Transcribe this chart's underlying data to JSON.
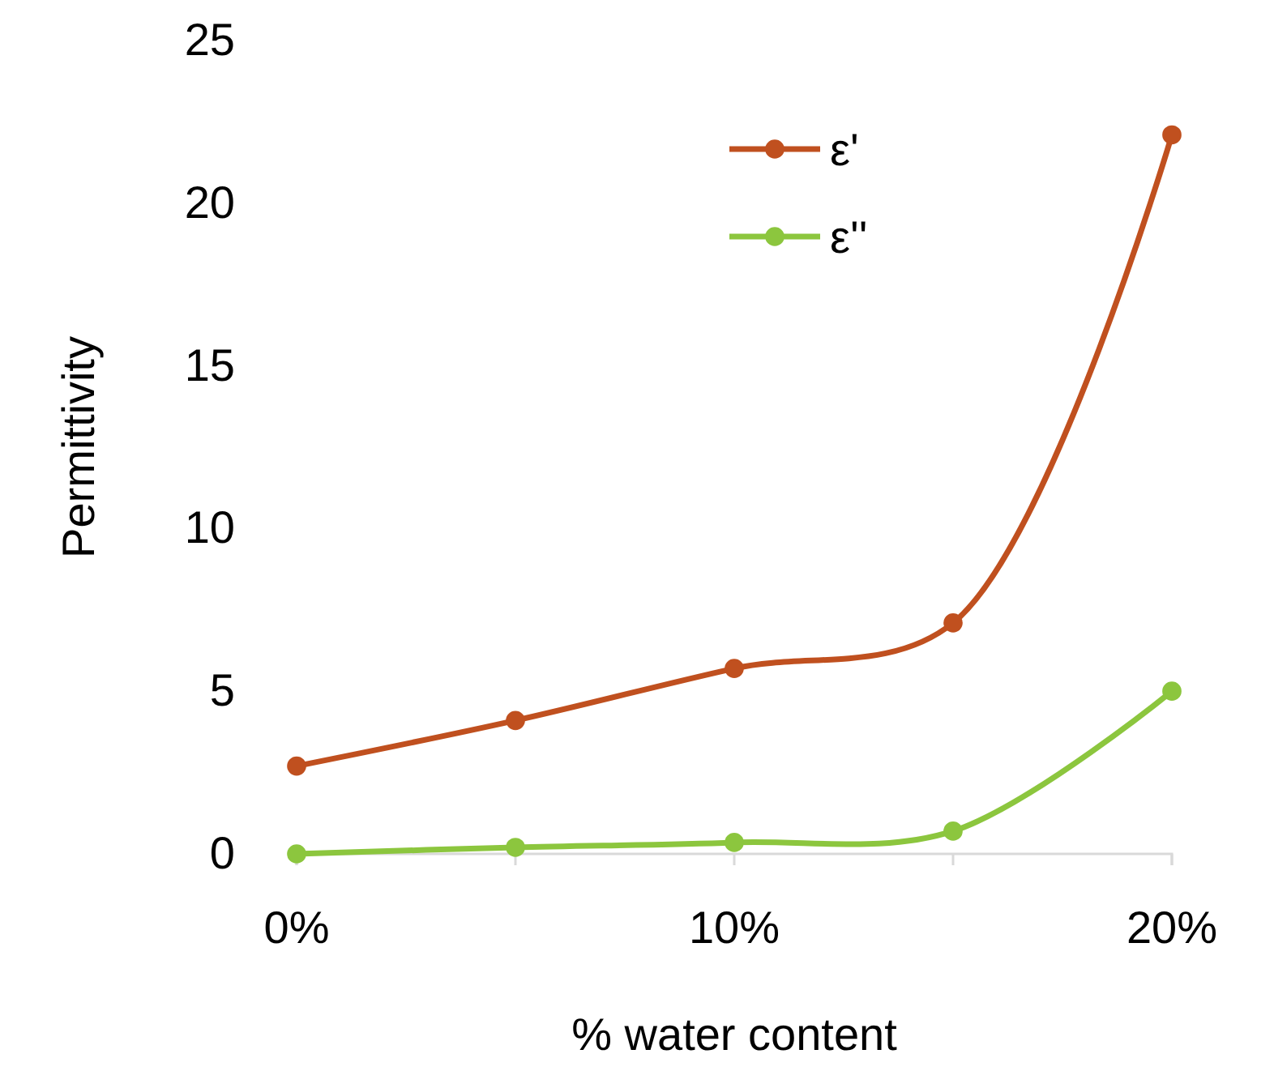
{
  "chart_data": {
    "type": "line",
    "xlabel": "% water content",
    "ylabel": "Permittivity",
    "x": [
      0,
      5,
      10,
      15,
      20
    ],
    "xlim": [
      0,
      20
    ],
    "xticks": [
      {
        "value": 0,
        "label": "0%"
      },
      {
        "value": 5,
        "label": null
      },
      {
        "value": 10,
        "label": "10%"
      },
      {
        "value": 15,
        "label": null
      },
      {
        "value": 20,
        "label": "20%"
      }
    ],
    "ylim": [
      0,
      25
    ],
    "yticks": [
      0,
      5,
      10,
      15,
      20,
      25
    ],
    "series": [
      {
        "name": "ε'",
        "color": "#c0501f",
        "values": [
          2.7,
          4.1,
          5.7,
          7.1,
          22.1
        ]
      },
      {
        "name": "ε''",
        "color": "#8cc63e",
        "values": [
          0,
          0.2,
          0.35,
          0.7,
          5.0
        ]
      }
    ],
    "marker": "circle",
    "line_style": "solid",
    "grid": false,
    "legend": "top"
  }
}
